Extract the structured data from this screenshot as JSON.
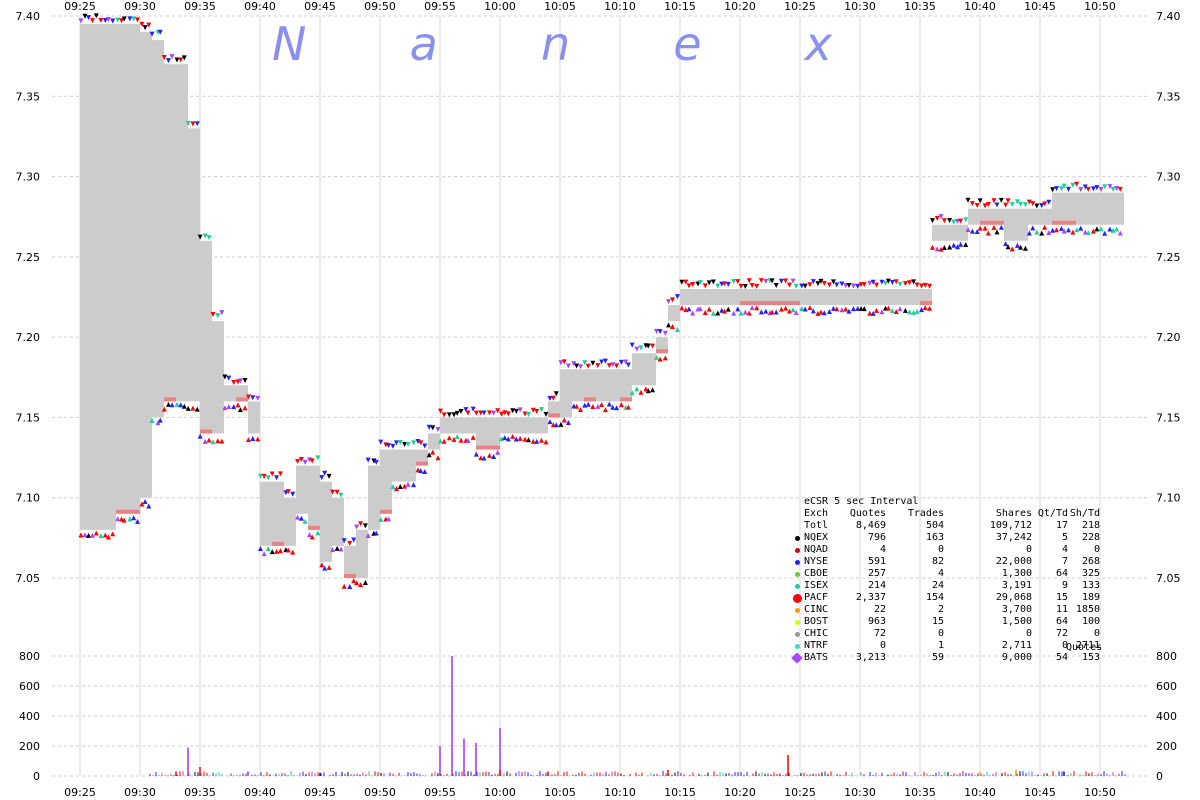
{
  "watermark": "N a n e x",
  "chart_data": [
    {
      "type": "scatter",
      "title": "",
      "xlabel": "",
      "ylabel": "",
      "x_ticks": [
        "09:25",
        "09:30",
        "09:35",
        "09:40",
        "09:45",
        "09:50",
        "09:55",
        "10:00",
        "10:05",
        "10:10",
        "10:15",
        "10:20",
        "10:25",
        "10:30",
        "10:35",
        "10:40",
        "10:45",
        "10:50"
      ],
      "y_ticks": [
        "7.40",
        "7.35",
        "7.30",
        "7.25",
        "7.20",
        "7.15",
        "7.10",
        "7.05"
      ],
      "ylim": [
        7.01,
        7.4
      ],
      "grid": true,
      "nbbo_band": [
        [
          "09:25",
          7.08,
          7.395
        ],
        [
          "09:28",
          7.09,
          7.395
        ],
        [
          "09:30",
          7.1,
          7.39
        ],
        [
          "09:31",
          7.15,
          7.385
        ],
        [
          "09:32",
          7.16,
          7.37
        ],
        [
          "09:33",
          7.16,
          7.37
        ],
        [
          "09:34",
          7.16,
          7.33
        ],
        [
          "09:35",
          7.14,
          7.26
        ],
        [
          "09:36",
          7.14,
          7.21
        ],
        [
          "09:37",
          7.16,
          7.17
        ],
        [
          "09:38",
          7.16,
          7.17
        ],
        [
          "09:39",
          7.14,
          7.16
        ],
        [
          "09:40",
          7.07,
          7.11
        ],
        [
          "09:41",
          7.07,
          7.11
        ],
        [
          "09:42",
          7.07,
          7.1
        ],
        [
          "09:43",
          7.09,
          7.12
        ],
        [
          "09:44",
          7.08,
          7.12
        ],
        [
          "09:45",
          7.06,
          7.11
        ],
        [
          "09:46",
          7.07,
          7.1
        ],
        [
          "09:47",
          7.05,
          7.07
        ],
        [
          "09:48",
          7.05,
          7.08
        ],
        [
          "09:49",
          7.08,
          7.12
        ],
        [
          "09:50",
          7.09,
          7.13
        ],
        [
          "09:51",
          7.11,
          7.13
        ],
        [
          "09:52",
          7.11,
          7.13
        ],
        [
          "09:53",
          7.12,
          7.13
        ],
        [
          "09:54",
          7.13,
          7.14
        ],
        [
          "09:55",
          7.14,
          7.15
        ],
        [
          "09:58",
          7.13,
          7.15
        ],
        [
          "10:00",
          7.14,
          7.15
        ],
        [
          "10:03",
          7.14,
          7.15
        ],
        [
          "10:04",
          7.15,
          7.16
        ],
        [
          "10:05",
          7.15,
          7.18
        ],
        [
          "10:06",
          7.16,
          7.18
        ],
        [
          "10:07",
          7.16,
          7.18
        ],
        [
          "10:08",
          7.16,
          7.18
        ],
        [
          "10:09",
          7.16,
          7.18
        ],
        [
          "10:10",
          7.16,
          7.18
        ],
        [
          "10:11",
          7.17,
          7.19
        ],
        [
          "10:12",
          7.17,
          7.19
        ],
        [
          "10:13",
          7.19,
          7.2
        ],
        [
          "10:14",
          7.21,
          7.22
        ],
        [
          "10:15",
          7.22,
          7.23
        ],
        [
          "10:20",
          7.22,
          7.23
        ],
        [
          "10:25",
          7.22,
          7.23
        ],
        [
          "10:30",
          7.22,
          7.23
        ],
        [
          "10:35",
          7.22,
          7.23
        ],
        [
          "10:36",
          7.26,
          7.27
        ],
        [
          "10:39",
          7.27,
          7.28
        ],
        [
          "10:40",
          7.27,
          7.28
        ],
        [
          "10:42",
          7.26,
          7.28
        ],
        [
          "10:44",
          7.27,
          7.28
        ],
        [
          "10:46",
          7.27,
          7.29
        ],
        [
          "10:48",
          7.27,
          7.29
        ],
        [
          "10:52",
          7.27,
          7.29
        ]
      ],
      "volume_ylim": [
        0,
        800
      ],
      "volume_ticks": [
        "0",
        "200",
        "400",
        "600",
        "800"
      ],
      "volume_spikes": [
        [
          "09:33",
          30,
          "#ff0000"
        ],
        [
          "09:34",
          190,
          "#9933ff"
        ],
        [
          "09:35",
          60,
          "#ff0000"
        ],
        [
          "09:39",
          30,
          "#9933ff"
        ],
        [
          "09:45",
          20,
          "#0000ff"
        ],
        [
          "09:55",
          200,
          "#9933ff"
        ],
        [
          "09:56",
          800,
          "#9933ff"
        ],
        [
          "09:57",
          250,
          "#9933ff"
        ],
        [
          "09:58",
          220,
          "#9933ff"
        ],
        [
          "10:00",
          320,
          "#9933ff"
        ],
        [
          "10:00",
          40,
          "#ff0000"
        ],
        [
          "10:04",
          30,
          "#ff0000"
        ],
        [
          "10:14",
          40,
          "#ff0000"
        ],
        [
          "10:24",
          140,
          "#ff0000"
        ],
        [
          "10:40",
          30,
          "#ffcc00"
        ],
        [
          "10:43",
          40,
          "#ff9900"
        ],
        [
          "10:47",
          30,
          "#0000ff"
        ]
      ],
      "exchange_colors": {
        "NQEX": "#000000",
        "NQAD": "#cc0000",
        "NYSE": "#2222ff",
        "CBOE": "#66cc33",
        "ISEX": "#1ccf99",
        "PACF": "#ff0000",
        "CINC": "#ff9900",
        "BOST": "#ccff00",
        "CHIC": "#999999",
        "NTRF": "#33ddcc",
        "BATS": "#aa44ff"
      }
    }
  ],
  "stats_table": {
    "caption": "eCSR 5 sec Interval",
    "headers": [
      "Exch",
      "Quotes",
      "Trades",
      "Shares",
      "Qt/Td",
      "Sh/Td"
    ],
    "rows": [
      {
        "exch": "Totl",
        "quotes": "8,469",
        "trades": "504",
        "shares": "109,712",
        "qttd": "17",
        "shtd": "218",
        "marker": "none",
        "color": "#000000"
      },
      {
        "exch": "NQEX",
        "quotes": "796",
        "trades": "163",
        "shares": "37,242",
        "qttd": "5",
        "shtd": "228",
        "marker": "dot",
        "color": "#000000"
      },
      {
        "exch": "NQAD",
        "quotes": "4",
        "trades": "0",
        "shares": "0",
        "qttd": "4",
        "shtd": "0",
        "marker": "dot",
        "color": "#cc0000"
      },
      {
        "exch": "NYSE",
        "quotes": "591",
        "trades": "82",
        "shares": "22,000",
        "qttd": "7",
        "shtd": "268",
        "marker": "dot",
        "color": "#2222ff"
      },
      {
        "exch": "CBOE",
        "quotes": "257",
        "trades": "4",
        "shares": "1,300",
        "qttd": "64",
        "shtd": "325",
        "marker": "dot",
        "color": "#66cc33"
      },
      {
        "exch": "ISEX",
        "quotes": "214",
        "trades": "24",
        "shares": "3,191",
        "qttd": "9",
        "shtd": "133",
        "marker": "dot",
        "color": "#1ccf99"
      },
      {
        "exch": "PACF",
        "quotes": "2,337",
        "trades": "154",
        "shares": "29,068",
        "qttd": "15",
        "shtd": "189",
        "marker": "bigdot",
        "color": "#ff0000"
      },
      {
        "exch": "CINC",
        "quotes": "22",
        "trades": "2",
        "shares": "3,700",
        "qttd": "11",
        "shtd": "1850",
        "marker": "dot",
        "color": "#ff9900"
      },
      {
        "exch": "BOST",
        "quotes": "963",
        "trades": "15",
        "shares": "1,500",
        "qttd": "64",
        "shtd": "100",
        "marker": "dot",
        "color": "#ccff00"
      },
      {
        "exch": "CHIC",
        "quotes": "72",
        "trades": "0",
        "shares": "0",
        "qttd": "72",
        "shtd": "0",
        "marker": "dot",
        "color": "#999999"
      },
      {
        "exch": "NTRF",
        "quotes": "0",
        "trades": "1",
        "shares": "2,711",
        "qttd": "0",
        "shtd": "2711",
        "marker": "dot",
        "color": "#33ddcc"
      },
      {
        "exch": "BATS",
        "quotes": "3,213",
        "trades": "59",
        "shares": "9,000",
        "qttd": "54",
        "shtd": "153",
        "marker": "diamond",
        "color": "#aa44ff"
      }
    ],
    "footer": "Quotes"
  }
}
